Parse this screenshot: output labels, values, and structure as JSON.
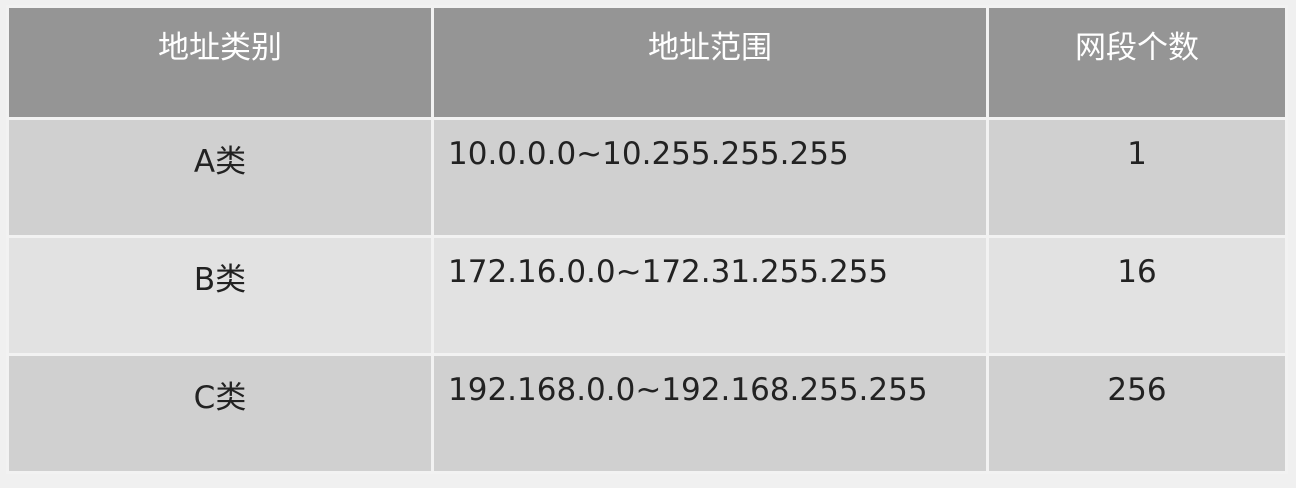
{
  "table": {
    "headers": [
      "地址类别",
      "地址范围",
      "网段个数"
    ],
    "rows": [
      [
        "A类",
        "10.0.0.0~10.255.255.255",
        "1"
      ],
      [
        "B类",
        "172.16.0.0~172.31.255.255",
        "16"
      ],
      [
        "C类",
        "192.168.0.0~192.168.255.255",
        "256"
      ]
    ]
  }
}
